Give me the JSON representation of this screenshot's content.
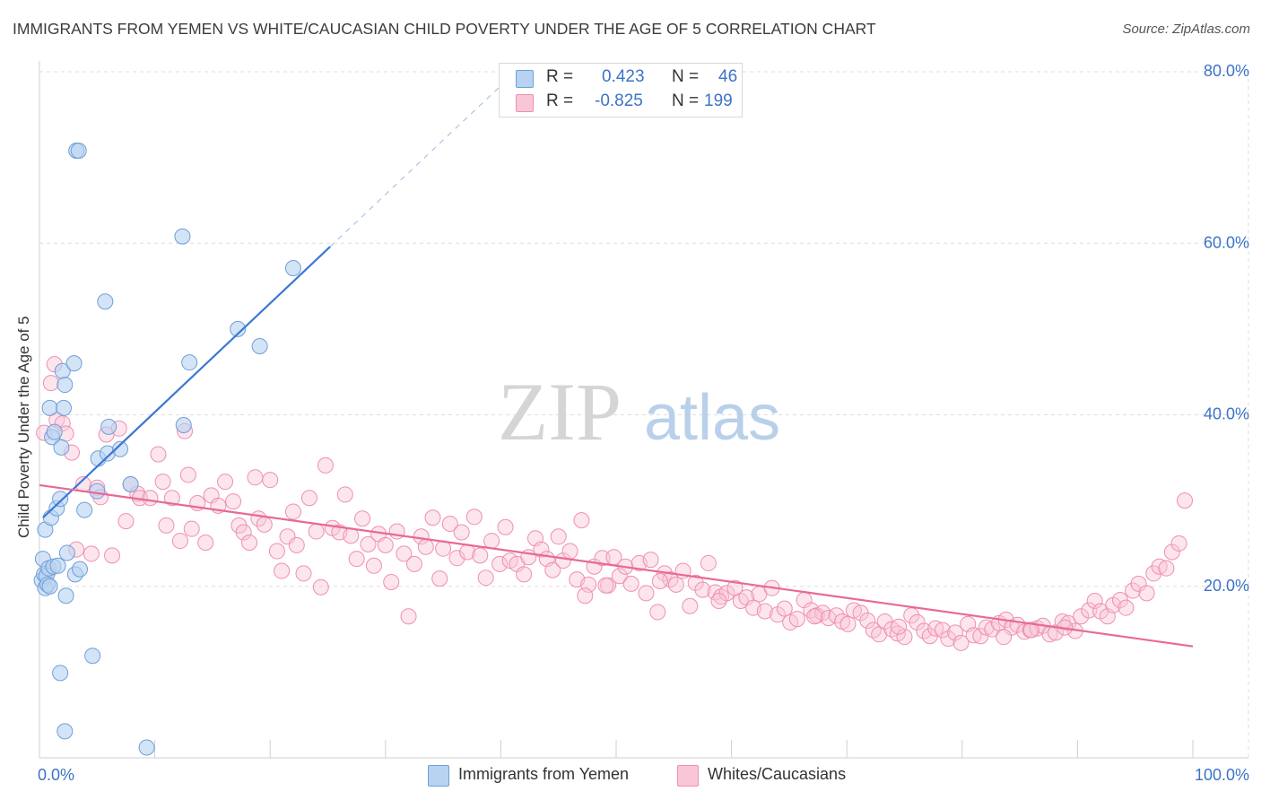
{
  "title": "IMMIGRANTS FROM YEMEN VS WHITE/CAUCASIAN CHILD POVERTY UNDER THE AGE OF 5 CORRELATION CHART",
  "source": "Source: ZipAtlas.com",
  "watermark": {
    "zip": "ZIP",
    "atlas": "atlas"
  },
  "legend": {
    "rows": [
      {
        "r_label": "R =",
        "r_value": "0.423",
        "n_label": "N =",
        "n_value": "46"
      },
      {
        "r_label": "R =",
        "r_value": "-0.825",
        "n_label": "N =",
        "n_value": "199"
      }
    ]
  },
  "colors": {
    "series1_fill": "#b8d2f2",
    "series1_stroke": "#6f9fd8",
    "series1_line": "#3a78d4",
    "series2_fill": "#f8c6d6",
    "series2_stroke": "#ef8fb0",
    "series2_line": "#e8689a",
    "axis_text": "#3b73c6",
    "grid": "#dddddd"
  },
  "chart_data": {
    "type": "scatter",
    "xlabel": "",
    "ylabel": "Child Poverty Under the Age of 5",
    "xlim": [
      0,
      100
    ],
    "ylim": [
      0,
      80
    ],
    "x_tick_labels": [
      {
        "value": 0,
        "label": "0.0%"
      },
      {
        "value": 100,
        "label": "100.0%"
      }
    ],
    "y_tick_labels": [
      {
        "value": 20,
        "label": "20.0%"
      },
      {
        "value": 40,
        "label": "40.0%"
      },
      {
        "value": 60,
        "label": "60.0%"
      },
      {
        "value": 80,
        "label": "80.0%"
      }
    ],
    "grid": true,
    "series": [
      {
        "name": "Immigrants from Yemen",
        "trend": {
          "x": [
            0.3,
            25.2
          ],
          "y": [
            28.0,
            59.6
          ],
          "dashed_to": {
            "x": 40.5,
            "y": 79.0
          }
        },
        "points": [
          [
            0.2,
            20.7
          ],
          [
            0.3,
            23.2
          ],
          [
            0.4,
            21.4
          ],
          [
            0.5,
            19.8
          ],
          [
            0.6,
            21.2
          ],
          [
            0.7,
            20.2
          ],
          [
            0.8,
            22.1
          ],
          [
            0.9,
            40.8
          ],
          [
            0.5,
            26.6
          ],
          [
            1.0,
            28.0
          ],
          [
            1.1,
            37.4
          ],
          [
            1.2,
            22.3
          ],
          [
            1.3,
            38.0
          ],
          [
            1.5,
            29.1
          ],
          [
            1.6,
            22.4
          ],
          [
            1.8,
            30.2
          ],
          [
            1.9,
            36.2
          ],
          [
            2.0,
            45.1
          ],
          [
            2.1,
            40.8
          ],
          [
            2.2,
            43.5
          ],
          [
            2.3,
            18.9
          ],
          [
            2.4,
            23.9
          ],
          [
            1.8,
            9.9
          ],
          [
            2.2,
            3.1
          ],
          [
            3.0,
            46.0
          ],
          [
            3.1,
            21.4
          ],
          [
            3.5,
            22.0
          ],
          [
            3.9,
            28.9
          ],
          [
            3.2,
            70.8
          ],
          [
            3.4,
            70.8
          ],
          [
            4.6,
            11.9
          ],
          [
            5.0,
            31.1
          ],
          [
            5.1,
            34.9
          ],
          [
            5.7,
            53.2
          ],
          [
            5.9,
            35.5
          ],
          [
            6.0,
            38.6
          ],
          [
            7.0,
            36.0
          ],
          [
            7.9,
            31.9
          ],
          [
            9.3,
            1.2
          ],
          [
            12.4,
            60.8
          ],
          [
            12.5,
            38.8
          ],
          [
            13.0,
            46.1
          ],
          [
            17.2,
            50.0
          ],
          [
            19.1,
            48.0
          ],
          [
            22.0,
            57.1
          ],
          [
            0.9,
            20.0
          ]
        ]
      },
      {
        "name": "Whites/Caucasians",
        "trend": {
          "x": [
            0,
            100
          ],
          "y": [
            31.8,
            13.0
          ]
        },
        "points": [
          [
            0.4,
            37.9
          ],
          [
            0.7,
            21.6
          ],
          [
            1.0,
            43.7
          ],
          [
            1.3,
            45.9
          ],
          [
            1.5,
            39.4
          ],
          [
            2.0,
            39.0
          ],
          [
            2.3,
            37.8
          ],
          [
            2.8,
            35.6
          ],
          [
            3.2,
            24.3
          ],
          [
            3.8,
            31.9
          ],
          [
            4.5,
            23.8
          ],
          [
            5.0,
            31.5
          ],
          [
            5.3,
            30.4
          ],
          [
            5.8,
            37.7
          ],
          [
            6.3,
            23.6
          ],
          [
            6.9,
            38.4
          ],
          [
            7.5,
            27.6
          ],
          [
            7.9,
            31.9
          ],
          [
            8.5,
            30.8
          ],
          [
            8.7,
            30.3
          ],
          [
            9.6,
            30.3
          ],
          [
            10.3,
            35.4
          ],
          [
            10.7,
            32.2
          ],
          [
            11.0,
            27.1
          ],
          [
            11.5,
            30.3
          ],
          [
            12.2,
            25.3
          ],
          [
            12.6,
            38.1
          ],
          [
            12.9,
            33.0
          ],
          [
            13.2,
            26.7
          ],
          [
            13.7,
            29.7
          ],
          [
            14.4,
            25.1
          ],
          [
            14.9,
            30.6
          ],
          [
            15.5,
            29.4
          ],
          [
            16.1,
            32.2
          ],
          [
            16.8,
            29.9
          ],
          [
            17.3,
            27.1
          ],
          [
            17.7,
            26.3
          ],
          [
            18.2,
            25.1
          ],
          [
            18.7,
            32.7
          ],
          [
            19.0,
            27.9
          ],
          [
            19.5,
            27.2
          ],
          [
            20.0,
            32.4
          ],
          [
            20.6,
            24.1
          ],
          [
            21.0,
            21.8
          ],
          [
            21.5,
            25.8
          ],
          [
            22.0,
            28.7
          ],
          [
            22.3,
            24.8
          ],
          [
            22.9,
            21.5
          ],
          [
            23.4,
            30.3
          ],
          [
            24.0,
            26.4
          ],
          [
            24.4,
            19.9
          ],
          [
            24.8,
            34.1
          ],
          [
            25.4,
            26.8
          ],
          [
            26.0,
            26.3
          ],
          [
            26.5,
            30.7
          ],
          [
            27.0,
            25.9
          ],
          [
            27.5,
            23.2
          ],
          [
            28.0,
            27.9
          ],
          [
            28.5,
            24.9
          ],
          [
            29.0,
            22.4
          ],
          [
            29.4,
            26.1
          ],
          [
            30.0,
            24.8
          ],
          [
            30.5,
            20.5
          ],
          [
            31.0,
            26.4
          ],
          [
            31.6,
            23.8
          ],
          [
            32.0,
            16.5
          ],
          [
            32.5,
            22.6
          ],
          [
            33.1,
            25.8
          ],
          [
            33.5,
            24.6
          ],
          [
            34.1,
            28.0
          ],
          [
            34.7,
            20.9
          ],
          [
            35.0,
            24.4
          ],
          [
            35.6,
            27.3
          ],
          [
            36.2,
            23.3
          ],
          [
            36.6,
            26.3
          ],
          [
            37.1,
            24.0
          ],
          [
            37.7,
            28.1
          ],
          [
            38.2,
            23.6
          ],
          [
            38.7,
            21.0
          ],
          [
            39.2,
            25.3
          ],
          [
            39.9,
            22.6
          ],
          [
            40.4,
            26.9
          ],
          [
            40.8,
            23.0
          ],
          [
            41.4,
            22.6
          ],
          [
            42.0,
            21.4
          ],
          [
            42.4,
            23.4
          ],
          [
            43.0,
            25.6
          ],
          [
            43.5,
            24.3
          ],
          [
            44.0,
            23.2
          ],
          [
            44.5,
            21.9
          ],
          [
            45.0,
            25.8
          ],
          [
            45.4,
            23.0
          ],
          [
            46.0,
            24.1
          ],
          [
            46.6,
            20.8
          ],
          [
            47.0,
            27.7
          ],
          [
            47.6,
            20.2
          ],
          [
            48.1,
            22.3
          ],
          [
            48.8,
            23.3
          ],
          [
            49.3,
            20.1
          ],
          [
            49.8,
            23.4
          ],
          [
            50.3,
            21.2
          ],
          [
            50.8,
            22.3
          ],
          [
            51.3,
            20.3
          ],
          [
            52.0,
            22.7
          ],
          [
            52.6,
            19.2
          ],
          [
            53.0,
            23.1
          ],
          [
            53.6,
            17.0
          ],
          [
            54.2,
            21.5
          ],
          [
            54.7,
            20.8
          ],
          [
            55.2,
            20.2
          ],
          [
            55.8,
            21.8
          ],
          [
            56.4,
            17.7
          ],
          [
            56.9,
            20.4
          ],
          [
            57.5,
            19.6
          ],
          [
            58.0,
            22.7
          ],
          [
            58.6,
            19.3
          ],
          [
            59.1,
            18.8
          ],
          [
            59.6,
            19.2
          ],
          [
            60.3,
            19.8
          ],
          [
            60.8,
            18.3
          ],
          [
            61.3,
            18.7
          ],
          [
            61.9,
            17.5
          ],
          [
            62.4,
            19.1
          ],
          [
            62.9,
            17.1
          ],
          [
            63.5,
            19.8
          ],
          [
            64.0,
            16.7
          ],
          [
            64.6,
            17.4
          ],
          [
            65.1,
            15.8
          ],
          [
            65.7,
            16.2
          ],
          [
            66.3,
            18.4
          ],
          [
            66.9,
            17.2
          ],
          [
            67.4,
            16.6
          ],
          [
            67.9,
            16.9
          ],
          [
            68.4,
            16.3
          ],
          [
            69.1,
            16.6
          ],
          [
            69.6,
            15.9
          ],
          [
            70.1,
            15.6
          ],
          [
            70.6,
            17.2
          ],
          [
            71.2,
            16.9
          ],
          [
            71.8,
            16.0
          ],
          [
            72.3,
            14.9
          ],
          [
            72.8,
            14.4
          ],
          [
            73.3,
            15.9
          ],
          [
            73.9,
            15.0
          ],
          [
            74.4,
            14.5
          ],
          [
            75.0,
            14.1
          ],
          [
            75.6,
            16.6
          ],
          [
            76.1,
            15.8
          ],
          [
            76.7,
            14.8
          ],
          [
            77.2,
            14.2
          ],
          [
            77.7,
            15.1
          ],
          [
            78.3,
            14.9
          ],
          [
            78.8,
            13.9
          ],
          [
            79.4,
            14.6
          ],
          [
            79.9,
            13.4
          ],
          [
            80.5,
            15.6
          ],
          [
            81.0,
            14.3
          ],
          [
            81.6,
            14.2
          ],
          [
            82.1,
            15.2
          ],
          [
            82.6,
            15.0
          ],
          [
            83.2,
            15.7
          ],
          [
            83.8,
            16.1
          ],
          [
            84.3,
            15.2
          ],
          [
            84.8,
            15.5
          ],
          [
            85.4,
            14.7
          ],
          [
            85.9,
            14.9
          ],
          [
            86.5,
            15.1
          ],
          [
            87.0,
            15.4
          ],
          [
            87.6,
            14.4
          ],
          [
            88.1,
            14.6
          ],
          [
            88.7,
            15.9
          ],
          [
            89.2,
            15.7
          ],
          [
            89.8,
            14.8
          ],
          [
            90.3,
            16.5
          ],
          [
            91.0,
            17.2
          ],
          [
            91.5,
            18.3
          ],
          [
            92.0,
            17.1
          ],
          [
            92.6,
            16.5
          ],
          [
            93.1,
            17.8
          ],
          [
            93.7,
            18.4
          ],
          [
            94.2,
            17.5
          ],
          [
            94.8,
            19.5
          ],
          [
            95.3,
            20.3
          ],
          [
            96.0,
            19.2
          ],
          [
            96.6,
            21.5
          ],
          [
            97.1,
            22.3
          ],
          [
            97.7,
            22.1
          ],
          [
            98.2,
            24.0
          ],
          [
            98.8,
            25.0
          ],
          [
            99.3,
            30.0
          ],
          [
            74.5,
            15.3
          ],
          [
            83.6,
            14.1
          ],
          [
            86.0,
            14.9
          ],
          [
            88.9,
            15.2
          ],
          [
            67.2,
            16.5
          ],
          [
            58.9,
            18.3
          ],
          [
            53.8,
            20.6
          ],
          [
            49.1,
            20.1
          ],
          [
            47.3,
            18.9
          ]
        ]
      }
    ]
  },
  "bottom_legend": [
    "Immigrants from Yemen",
    "Whites/Caucasians"
  ]
}
